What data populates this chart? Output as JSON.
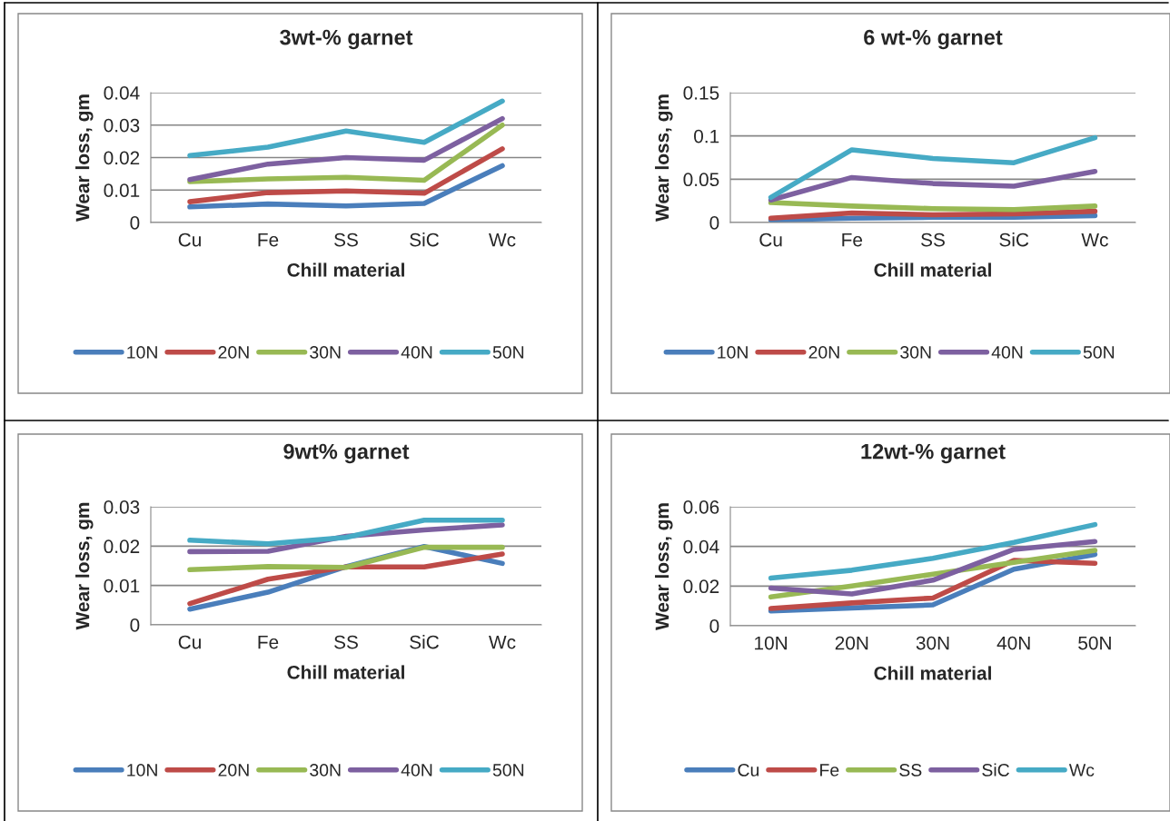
{
  "chart_data": [
    {
      "type": "line",
      "title": "3wt-% garnet",
      "xlabel": "Chill material",
      "ylabel": "Wear loss, gm",
      "categories": [
        "Cu",
        "Fe",
        "SS",
        "SiC",
        "Wc"
      ],
      "ylim": [
        0,
        0.04
      ],
      "yticks": [
        0,
        0.01,
        0.02,
        0.03,
        0.04
      ],
      "grid": "y",
      "legend": "bottom",
      "marker": "none",
      "line_style": "solid",
      "series": [
        {
          "name": "10N",
          "color": "#4a7ebb",
          "values": [
            0.0048,
            0.0057,
            0.0051,
            0.0059,
            0.0175
          ]
        },
        {
          "name": "20N",
          "color": "#be4b48",
          "values": [
            0.0064,
            0.0092,
            0.0097,
            0.009,
            0.0227
          ]
        },
        {
          "name": "30N",
          "color": "#98b954",
          "values": [
            0.0126,
            0.0134,
            0.0139,
            0.013,
            0.03
          ]
        },
        {
          "name": "40N",
          "color": "#7d60a0",
          "values": [
            0.0132,
            0.018,
            0.02,
            0.0192,
            0.032
          ]
        },
        {
          "name": "50N",
          "color": "#46aac5",
          "values": [
            0.0206,
            0.0232,
            0.0282,
            0.0247,
            0.0374
          ]
        }
      ]
    },
    {
      "type": "line",
      "title": "6 wt-% garnet",
      "xlabel": "Chill material",
      "ylabel": "Wear loss, gm",
      "categories": [
        "Cu",
        "Fe",
        "SS",
        "SiC",
        "Wc"
      ],
      "ylim": [
        0,
        0.15
      ],
      "yticks": [
        0,
        0.05,
        0.1,
        0.15
      ],
      "grid": "y",
      "legend": "bottom",
      "marker": "none",
      "line_style": "solid",
      "series": [
        {
          "name": "10N",
          "color": "#4a7ebb",
          "values": [
            0.003,
            0.005,
            0.006,
            0.006,
            0.008
          ]
        },
        {
          "name": "20N",
          "color": "#be4b48",
          "values": [
            0.005,
            0.011,
            0.009,
            0.01,
            0.013
          ]
        },
        {
          "name": "30N",
          "color": "#98b954",
          "values": [
            0.023,
            0.019,
            0.016,
            0.015,
            0.019
          ]
        },
        {
          "name": "40N",
          "color": "#7d60a0",
          "values": [
            0.026,
            0.052,
            0.045,
            0.042,
            0.059
          ]
        },
        {
          "name": "50N",
          "color": "#46aac5",
          "values": [
            0.029,
            0.084,
            0.074,
            0.069,
            0.098
          ]
        }
      ]
    },
    {
      "type": "line",
      "title": "9wt% garnet",
      "xlabel": "Chill material",
      "ylabel": "Wear loss, gm",
      "categories": [
        "Cu",
        "Fe",
        "SS",
        "SiC",
        "Wc"
      ],
      "ylim": [
        0,
        0.03
      ],
      "yticks": [
        0,
        0.01,
        0.02,
        0.03
      ],
      "grid": "y",
      "legend": "bottom",
      "marker": "none",
      "line_style": "solid",
      "series": [
        {
          "name": "10N",
          "color": "#4a7ebb",
          "values": [
            0.004,
            0.0083,
            0.0148,
            0.0199,
            0.0156
          ]
        },
        {
          "name": "20N",
          "color": "#be4b48",
          "values": [
            0.0054,
            0.0116,
            0.0147,
            0.0147,
            0.018
          ]
        },
        {
          "name": "30N",
          "color": "#98b954",
          "values": [
            0.014,
            0.0148,
            0.0146,
            0.0197,
            0.0197
          ]
        },
        {
          "name": "40N",
          "color": "#7d60a0",
          "values": [
            0.0186,
            0.0187,
            0.0225,
            0.0241,
            0.0254
          ]
        },
        {
          "name": "50N",
          "color": "#46aac5",
          "values": [
            0.0215,
            0.0206,
            0.0222,
            0.0266,
            0.0266
          ]
        }
      ]
    },
    {
      "type": "line",
      "title": "12wt-% garnet",
      "xlabel": "Chill material",
      "ylabel": "Wear loss, gm",
      "categories": [
        "10N",
        "20N",
        "30N",
        "40N",
        "50N"
      ],
      "ylim": [
        0,
        0.06
      ],
      "yticks": [
        0,
        0.02,
        0.04,
        0.06
      ],
      "grid": "y",
      "legend": "bottom",
      "marker": "none",
      "line_style": "solid",
      "series": [
        {
          "name": "Cu",
          "color": "#4a7ebb",
          "values": [
            0.0075,
            0.009,
            0.0105,
            0.0285,
            0.036
          ]
        },
        {
          "name": "Fe",
          "color": "#be4b48",
          "values": [
            0.0087,
            0.0115,
            0.014,
            0.033,
            0.0315
          ]
        },
        {
          "name": "SS",
          "color": "#98b954",
          "values": [
            0.0145,
            0.02,
            0.026,
            0.032,
            0.038
          ]
        },
        {
          "name": "SiC",
          "color": "#7d60a0",
          "values": [
            0.019,
            0.016,
            0.023,
            0.0385,
            0.0425
          ]
        },
        {
          "name": "Wc",
          "color": "#46aac5",
          "values": [
            0.024,
            0.028,
            0.034,
            0.042,
            0.051
          ]
        }
      ]
    }
  ]
}
